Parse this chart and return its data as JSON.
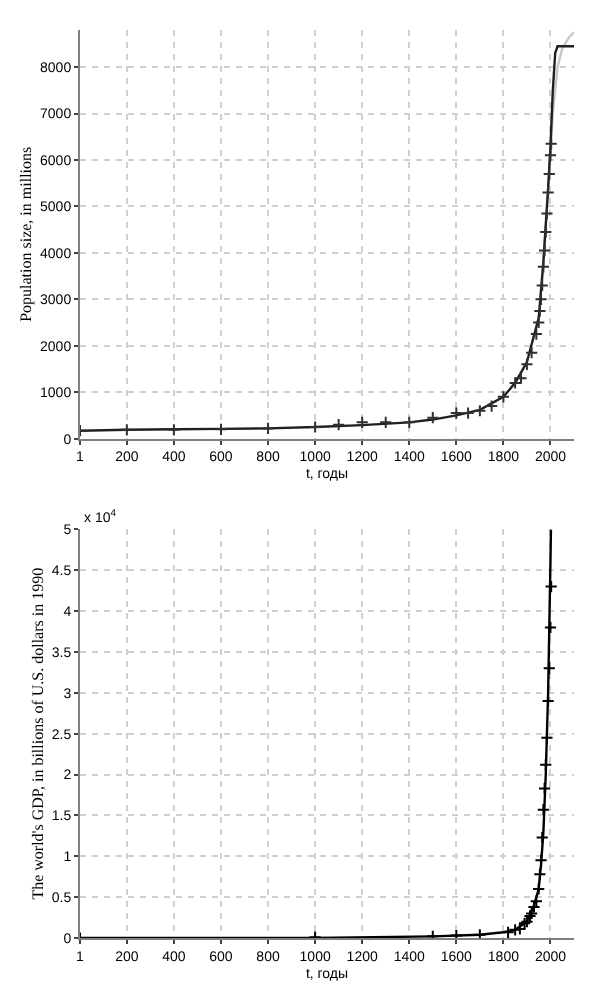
{
  "chart_data": [
    {
      "type": "line",
      "xlabel": "t, годы",
      "ylabel": "Population size, in millions",
      "xlim": [
        1,
        2100
      ],
      "ylim": [
        0,
        8800
      ],
      "xticks": [
        1,
        200,
        400,
        600,
        800,
        1000,
        1200,
        1400,
        1600,
        1800,
        2000
      ],
      "yticks": [
        0,
        1000,
        2000,
        3000,
        4000,
        5000,
        6000,
        7000,
        8000
      ],
      "grid": true,
      "series": [
        {
          "color": "#c8c8c8",
          "x": [
            1950,
            1990,
            2010,
            2030,
            2050,
            2080,
            2100
          ],
          "values": [
            2500,
            5300,
            7000,
            8000,
            8400,
            8650,
            8750
          ]
        },
        {
          "color": "#202020",
          "x": [
            1,
            200,
            400,
            600,
            800,
            1000,
            1200,
            1400,
            1500,
            1600,
            1700,
            1800,
            1850,
            1900,
            1950,
            1970,
            1990,
            2000,
            2010,
            2020,
            2030,
            2100
          ],
          "values": [
            170,
            190,
            200,
            210,
            220,
            250,
            290,
            350,
            410,
            500,
            620,
            900,
            1200,
            1650,
            2600,
            3800,
            5400,
            6300,
            7500,
            8300,
            8450,
            8450
          ]
        },
        {
          "type": "scatter",
          "marker": "cross",
          "color": "#303030",
          "x": [
            1,
            200,
            400,
            600,
            800,
            1000,
            1100,
            1200,
            1300,
            1400,
            1500,
            1600,
            1650,
            1700,
            1750,
            1800,
            1850,
            1875,
            1900,
            1920,
            1940,
            1950,
            1955,
            1960,
            1965,
            1970,
            1975,
            1980,
            1985,
            1990,
            1995,
            2000,
            2003
          ],
          "values": [
            170,
            190,
            190,
            200,
            220,
            250,
            300,
            350,
            350,
            350,
            450,
            550,
            550,
            600,
            700,
            900,
            1200,
            1300,
            1600,
            1850,
            2250,
            2500,
            2750,
            3000,
            3300,
            3700,
            4050,
            4450,
            4850,
            5300,
            5700,
            6100,
            6350
          ]
        }
      ]
    },
    {
      "type": "line",
      "xlabel": "t, годы",
      "ylabel": "The world's GDP, in billions of U.S. dollars in 1990",
      "xlim": [
        1,
        2100
      ],
      "ylim": [
        0,
        5
      ],
      "xticks": [
        1,
        200,
        400,
        600,
        800,
        1000,
        1200,
        1400,
        1600,
        1800,
        2000
      ],
      "yticks": [
        0,
        0.5,
        1,
        1.5,
        2,
        2.5,
        3,
        3.5,
        4,
        4.5,
        5
      ],
      "grid": true,
      "line_style": "solid",
      "annotations": [
        "x 10$^{4}$"
      ],
      "series": [
        {
          "color": "#000000",
          "x": [
            1,
            1000,
            1500,
            1700,
            1800,
            1850,
            1900,
            1930,
            1950,
            1960,
            1970,
            1980,
            1990,
            1995,
            2000,
            2002
          ],
          "values": [
            0,
            0,
            0.02,
            0.04,
            0.07,
            0.1,
            0.2,
            0.4,
            0.6,
            0.9,
            1.3,
            2.0,
            3.0,
            3.8,
            4.6,
            5.0
          ]
        },
        {
          "type": "scatter",
          "marker": "cross",
          "color": "#000000",
          "x": [
            1,
            1000,
            1500,
            1600,
            1700,
            1820,
            1850,
            1870,
            1890,
            1900,
            1913,
            1920,
            1930,
            1940,
            1950,
            1955,
            1960,
            1965,
            1970,
            1975,
            1980,
            1985,
            1990,
            1995,
            2000,
            2003
          ],
          "values": [
            0,
            0.01,
            0.02,
            0.03,
            0.04,
            0.07,
            0.1,
            0.11,
            0.18,
            0.2,
            0.27,
            0.3,
            0.38,
            0.45,
            0.6,
            0.78,
            0.95,
            1.23,
            1.57,
            1.83,
            2.12,
            2.45,
            2.9,
            3.3,
            3.8,
            4.3
          ]
        }
      ]
    }
  ]
}
